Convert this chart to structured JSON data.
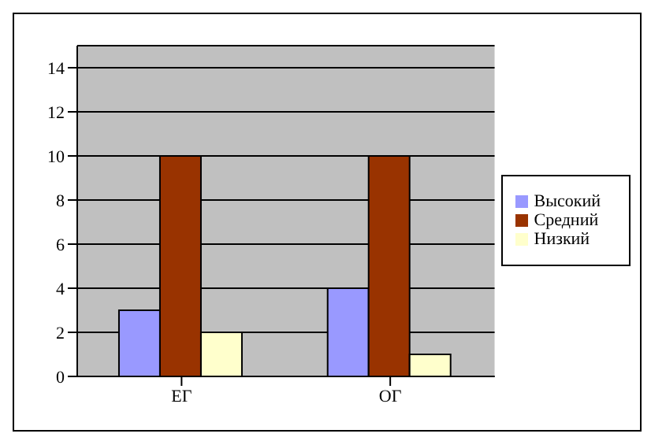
{
  "chart_data": {
    "type": "bar",
    "categories": [
      "ЕГ",
      "ОГ"
    ],
    "series": [
      {
        "name": "Высокий",
        "color": "#9999ff",
        "values": [
          3,
          4
        ]
      },
      {
        "name": "Средний",
        "color": "#993300",
        "values": [
          10,
          10
        ]
      },
      {
        "name": "Низкий",
        "color": "#ffffcc",
        "values": [
          2,
          1
        ]
      }
    ],
    "ylim": [
      0,
      15
    ],
    "yticks": [
      0,
      2,
      4,
      6,
      8,
      10,
      12,
      14
    ],
    "grid": "y",
    "legend": "right"
  }
}
